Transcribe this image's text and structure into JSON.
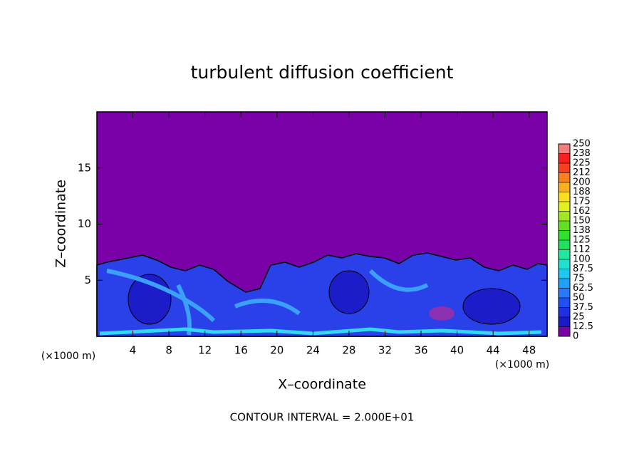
{
  "chart_data": {
    "type": "contour",
    "title": "turbulent diffusion coefficient",
    "x_label": "X–coordinate",
    "y_label": "Z–coordinate",
    "x_unit": "(×1000 m)",
    "footer": "CONTOUR INTERVAL = 2.000E+01",
    "xlim": [
      0,
      50
    ],
    "xticks": [
      4,
      8,
      12,
      16,
      20,
      24,
      28,
      32,
      36,
      40,
      44,
      48
    ],
    "ylim": [
      0,
      20
    ],
    "yticks": [
      5,
      10,
      15
    ],
    "colorbar": {
      "ticks": [
        0,
        12.5,
        25,
        37.5,
        50,
        62.5,
        75,
        87.5,
        100,
        {
          "value": 112.5,
          "label": "112"
        },
        125,
        {
          "value": 137.5,
          "label": "138"
        },
        150,
        {
          "value": 162.5,
          "label": "162"
        },
        175,
        {
          "value": 187.5,
          "label": "188"
        },
        200,
        {
          "value": 212.5,
          "label": "212"
        },
        225,
        {
          "value": 237.5,
          "label": "238"
        },
        250
      ],
      "colors": [
        "#7a00a8",
        "#1a1ac8",
        "#2030e0",
        "#2050f0",
        "#2878f8",
        "#20a0f8",
        "#20c8f0",
        "#20e0d0",
        "#20e8a0",
        "#20e060",
        "#30e030",
        "#60e020",
        "#a0e820",
        "#e0f020",
        "#f8e020",
        "#f8b020",
        "#f88020",
        "#f84020",
        "#f82020",
        "#f08080"
      ]
    }
  }
}
